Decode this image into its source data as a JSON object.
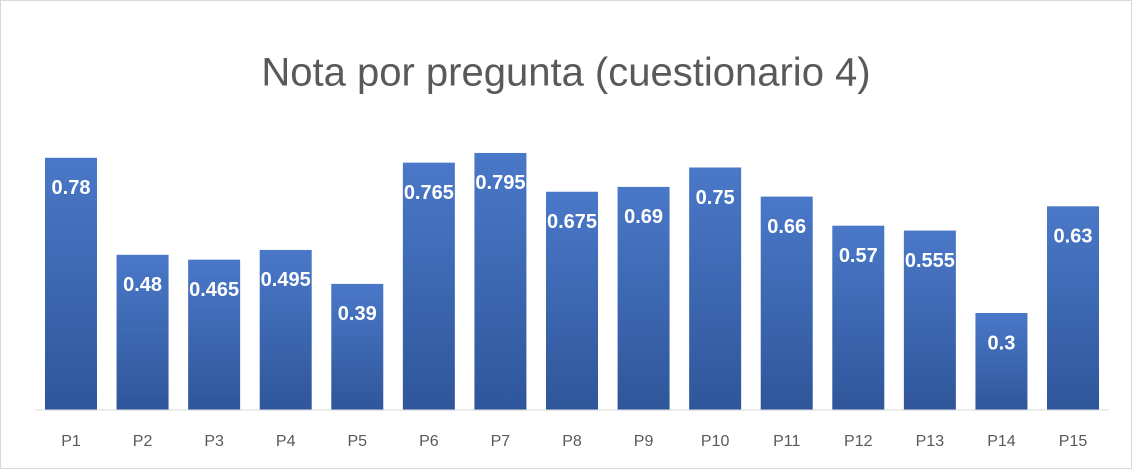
{
  "chart_data": {
    "type": "bar",
    "title": "Nota por pregunta (cuestionario 4)",
    "categories": [
      "P1",
      "P2",
      "P3",
      "P4",
      "P5",
      "P6",
      "P7",
      "P8",
      "P9",
      "P10",
      "P11",
      "P12",
      "P13",
      "P14",
      "P15"
    ],
    "values": [
      0.78,
      0.48,
      0.465,
      0.495,
      0.39,
      0.765,
      0.795,
      0.675,
      0.69,
      0.75,
      0.66,
      0.57,
      0.555,
      0.3,
      0.63
    ],
    "color": "#4472c4",
    "ylim": [
      0,
      0.9
    ]
  }
}
